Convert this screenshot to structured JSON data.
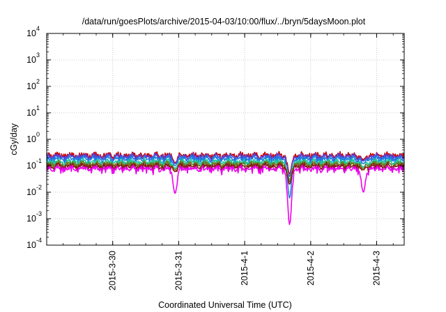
{
  "chart_data": {
    "type": "line",
    "title": "/data/run/goesPlots/archive/2015-04-03/10:00/flux/../bryn/5daysMoon.plot",
    "xlabel": "Coordinated Universal Time (UTC)",
    "ylabel": "cGy/day",
    "yscale": "log",
    "ylim": [
      0.0001,
      10000
    ],
    "y_ticks": [
      {
        "value": 0.0001,
        "base": "10",
        "exp": "-4"
      },
      {
        "value": 0.001,
        "base": "10",
        "exp": "-3"
      },
      {
        "value": 0.01,
        "base": "10",
        "exp": "-2"
      },
      {
        "value": 0.1,
        "base": "10",
        "exp": "-1"
      },
      {
        "value": 1,
        "base": "10",
        "exp": "0"
      },
      {
        "value": 10,
        "base": "10",
        "exp": "1"
      },
      {
        "value": 100,
        "base": "10",
        "exp": "2"
      },
      {
        "value": 1000,
        "base": "10",
        "exp": "3"
      },
      {
        "value": 10000,
        "base": "10",
        "exp": "4"
      }
    ],
    "xlim": [
      "2015-03-29 00:00",
      "2015-04-03 10:00"
    ],
    "x_ticks": [
      "2015-3-30",
      "2015-3-31",
      "2015-4-1",
      "2015-4-2",
      "2015-4-3"
    ],
    "grid": true,
    "legend": "none",
    "series": [
      {
        "color": "#cc0000",
        "base": 0.26,
        "dips": [
          {
            "t": "2015-03-30 22:40",
            "v": 0.13
          },
          {
            "t": "2015-04-01 16:20",
            "v": 0.05
          },
          {
            "t": "2015-04-02 19:10",
            "v": 0.17
          }
        ]
      },
      {
        "color": "#5a3fd6",
        "base": 0.23,
        "dips": [
          {
            "t": "2015-03-30 22:40",
            "v": 0.12
          },
          {
            "t": "2015-04-01 16:20",
            "v": 0.04
          },
          {
            "t": "2015-04-02 19:10",
            "v": 0.15
          }
        ]
      },
      {
        "color": "#1e7fe0",
        "base": 0.19,
        "dips": [
          {
            "t": "2015-03-30 22:40",
            "v": 0.1
          },
          {
            "t": "2015-04-01 16:20",
            "v": 0.006
          },
          {
            "t": "2015-04-02 19:10",
            "v": 0.12
          }
        ]
      },
      {
        "color": "#22c6a0",
        "base": 0.145,
        "dips": [
          {
            "t": "2015-03-30 22:40",
            "v": 0.08
          },
          {
            "t": "2015-04-01 16:20",
            "v": 0.03
          },
          {
            "t": "2015-04-02 19:10",
            "v": 0.09
          }
        ]
      },
      {
        "color": "#6b7a1a",
        "base": 0.12,
        "dips": [
          {
            "t": "2015-03-30 22:40",
            "v": 0.07
          },
          {
            "t": "2015-04-01 16:20",
            "v": 0.025
          },
          {
            "t": "2015-04-02 19:10",
            "v": 0.08
          }
        ]
      },
      {
        "color": "#8b1a1a",
        "base": 0.1,
        "dips": [
          {
            "t": "2015-03-30 22:40",
            "v": 0.06
          },
          {
            "t": "2015-04-01 16:20",
            "v": 0.02
          },
          {
            "t": "2015-04-02 19:10",
            "v": 0.07
          }
        ]
      },
      {
        "color": "#ee00ee",
        "base": 0.08,
        "dips": [
          {
            "t": "2015-03-30 22:40",
            "v": 0.009
          },
          {
            "t": "2015-04-01 16:20",
            "v": 0.0006
          },
          {
            "t": "2015-04-02 19:10",
            "v": 0.01
          }
        ]
      }
    ]
  }
}
